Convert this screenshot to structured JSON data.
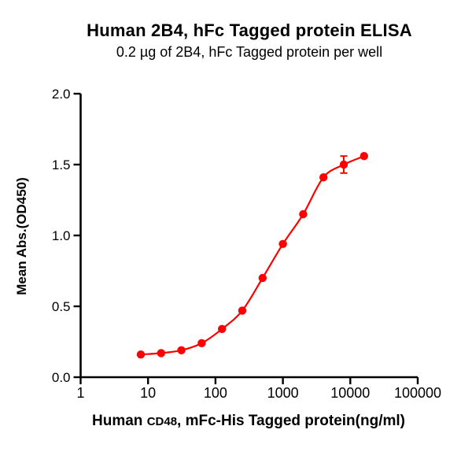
{
  "title": "Human 2B4, hFc Tagged protein ELISA",
  "subtitle": "0.2 µg of 2B4, hFc Tagged protein per well",
  "chart_data": {
    "type": "scatter",
    "title": "Human 2B4, hFc Tagged protein ELISA",
    "subtitle": "0.2 µg of 2B4, hFc Tagged protein per well",
    "xlabel": "Human CD48, mFc-His Tagged protein(ng/ml)",
    "xlabel_parts": [
      {
        "text": "Human ",
        "size": "large"
      },
      {
        "text": "CD48",
        "size": "small"
      },
      {
        "text": ", mFc-His Tagged protein(ng/ml)",
        "size": "large"
      }
    ],
    "ylabel": "Mean Abs.(OD450)",
    "x_scale": "log10",
    "xlim": [
      1,
      100000
    ],
    "ylim": [
      0.0,
      2.0
    ],
    "x_ticks": [
      1,
      10,
      100,
      1000,
      10000,
      100000
    ],
    "x_tick_labels": [
      "1",
      "10",
      "100",
      "1000",
      "10000",
      "100000"
    ],
    "y_ticks": [
      0.0,
      0.5,
      1.0,
      1.5,
      2.0
    ],
    "y_tick_labels": [
      "0.0",
      "0.5",
      "1.0",
      "1.5",
      "2.0"
    ],
    "grid": false,
    "legend": "none",
    "series": [
      {
        "name": "Human CD48, mFc-His Tagged protein",
        "marker": "circle",
        "color": "#FF0000",
        "fit": "sigmoidal dose-response curve",
        "x": [
          7.8125,
          15.625,
          31.25,
          62.5,
          125,
          250,
          500,
          1000,
          2000,
          4000,
          8000,
          16000
        ],
        "y": [
          0.16,
          0.17,
          0.19,
          0.24,
          0.34,
          0.47,
          0.7,
          0.94,
          1.15,
          1.41,
          1.5,
          1.56
        ],
        "error_bars": [
          {
            "x": 8000,
            "y": 1.5,
            "plus": 0.06,
            "minus": 0.06
          }
        ]
      }
    ],
    "colors": {
      "curve": "#FF0000",
      "marker": "#FF0000",
      "axis": "#000000",
      "text": "#000000",
      "background": "#FFFFFF"
    }
  }
}
